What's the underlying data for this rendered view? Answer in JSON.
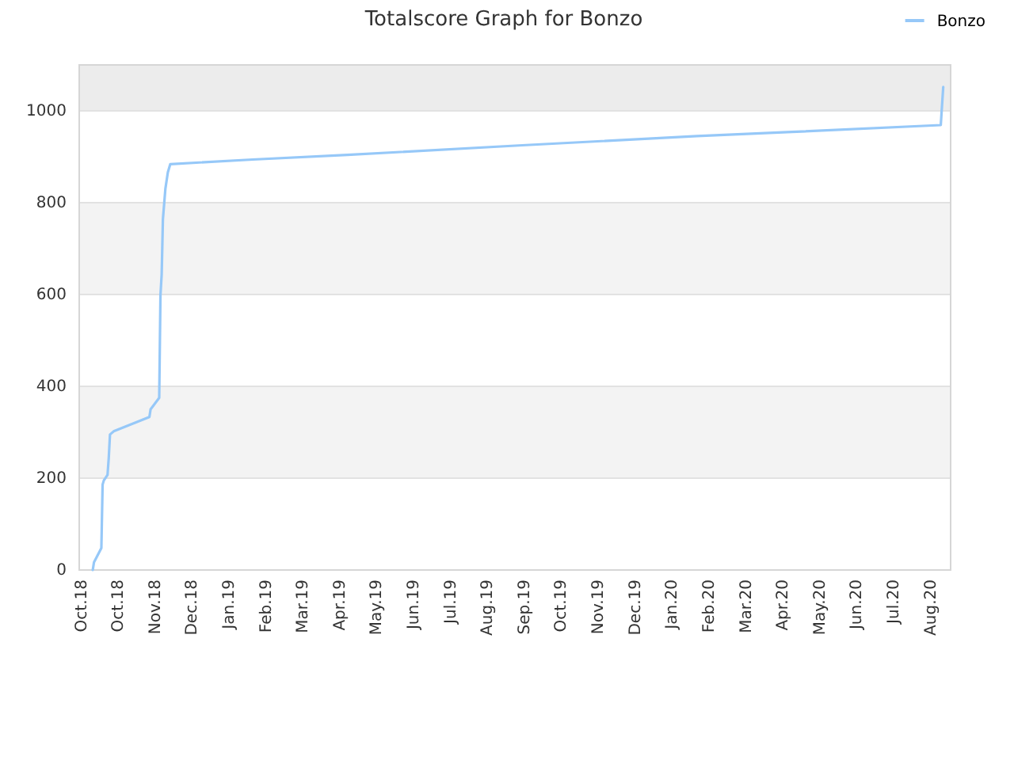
{
  "chart_data": {
    "type": "line",
    "title": "Totalscore Graph for Bonzo",
    "x": [
      "2018-10-11",
      "2018-10-12",
      "2018-10-18",
      "2018-10-19",
      "2018-10-20",
      "2018-10-23",
      "2018-10-24",
      "2018-10-25",
      "2018-10-28",
      "2018-11-26",
      "2018-11-27",
      "2018-12-04",
      "2018-12-05",
      "2018-12-06",
      "2018-12-07",
      "2018-12-09",
      "2018-12-11",
      "2018-12-13",
      "2019-02-18",
      "2019-05-06",
      "2019-09-25",
      "2020-02-14",
      "2020-05-01",
      "2020-08-30",
      "2020-08-31",
      "2020-09-01"
    ],
    "series": [
      {
        "name": "Bonzo",
        "color": "#96c8f8",
        "values": [
          0,
          17,
          48,
          186,
          195,
          207,
          244,
          295,
          302,
          333,
          350,
          375,
          598,
          644,
          764,
          830,
          866,
          884,
          894,
          904,
          925,
          945,
          954,
          969,
          1011,
          1052
        ]
      }
    ],
    "xlim": [
      "2018-09-30",
      "2020-09-07"
    ],
    "xticks": [
      {
        "value": "2018-10-01",
        "label": "Oct.18"
      },
      {
        "value": "2018-10-31",
        "label": "Oct.18"
      },
      {
        "value": "2018-11-30",
        "label": "Nov.18"
      },
      {
        "value": "2018-12-30",
        "label": "Dec.18"
      },
      {
        "value": "2019-01-29",
        "label": "Jan.19"
      },
      {
        "value": "2019-02-28",
        "label": "Feb.19"
      },
      {
        "value": "2019-03-30",
        "label": "Mar.19"
      },
      {
        "value": "2019-04-29",
        "label": "Apr.19"
      },
      {
        "value": "2019-05-29",
        "label": "May.19"
      },
      {
        "value": "2019-06-28",
        "label": "Jun.19"
      },
      {
        "value": "2019-07-28",
        "label": "Jul.19"
      },
      {
        "value": "2019-08-27",
        "label": "Aug.19"
      },
      {
        "value": "2019-09-26",
        "label": "Sep.19"
      },
      {
        "value": "2019-10-26",
        "label": "Oct.19"
      },
      {
        "value": "2019-11-25",
        "label": "Nov.19"
      },
      {
        "value": "2019-12-25",
        "label": "Dec.19"
      },
      {
        "value": "2020-01-24",
        "label": "Jan.20"
      },
      {
        "value": "2020-02-23",
        "label": "Feb.20"
      },
      {
        "value": "2020-03-24",
        "label": "Mar.20"
      },
      {
        "value": "2020-04-23",
        "label": "Apr.20"
      },
      {
        "value": "2020-05-23",
        "label": "May.20"
      },
      {
        "value": "2020-06-22",
        "label": "Jun.20"
      },
      {
        "value": "2020-07-22",
        "label": "Jul.20"
      },
      {
        "value": "2020-08-21",
        "label": "Aug.20"
      }
    ],
    "ylim": [
      0,
      1100
    ],
    "yticks": [
      0,
      200,
      400,
      600,
      800,
      1000
    ],
    "bands": [
      {
        "axis": "y",
        "from": 200,
        "to": 400,
        "color": "#f3f3f3"
      },
      {
        "axis": "y",
        "from": 600,
        "to": 800,
        "color": "#f3f3f3"
      },
      {
        "axis": "y",
        "from": 1000,
        "to": 1100,
        "color": "#ececec"
      }
    ],
    "grid": "y",
    "legend": "top right",
    "marker": "none",
    "line_style": "solid"
  }
}
